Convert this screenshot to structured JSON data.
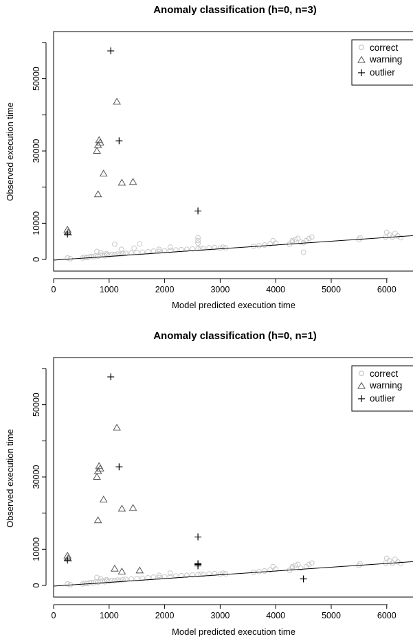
{
  "chart_data": [
    {
      "type": "scatter",
      "title": "Anomaly classification (h=0, n=3)",
      "xlabel": "Model predicted execution time",
      "ylabel": "Observed execution time",
      "xlim": [
        0,
        6500
      ],
      "ylim": [
        -3000,
        60000
      ],
      "xticks": [
        "0",
        "1000",
        "2000",
        "3000",
        "4000",
        "5000",
        "6000"
      ],
      "yticks": [
        "0",
        "10000",
        "30000",
        "50000"
      ],
      "legend": {
        "position": "top-right",
        "entries": [
          "correct",
          "warning",
          "outlier"
        ]
      },
      "regression_line": {
        "x": [
          0,
          6500
        ],
        "y": [
          -200,
          6600
        ]
      },
      "series": [
        {
          "name": "correct",
          "marker": "circle",
          "color": "#c8c8c8",
          "x": [
            250,
            300,
            520,
            560,
            600,
            640,
            680,
            720,
            760,
            800,
            840,
            880,
            920,
            960,
            1000,
            1050,
            1100,
            1150,
            1200,
            1250,
            1300,
            1400,
            1500,
            1600,
            1700,
            1800,
            1900,
            2000,
            2100,
            2200,
            2300,
            2400,
            2500,
            2600,
            2600,
            2600,
            2650,
            2700,
            2800,
            2900,
            3000,
            3050,
            3100,
            3600,
            3700,
            3800,
            3900,
            4000,
            4250,
            4300,
            4350,
            4400,
            4450,
            4500,
            4550,
            4600,
            4650,
            5500,
            5520,
            5980,
            6000,
            6050,
            6100,
            6150,
            6200,
            6250,
            1100,
            1550,
            1900,
            2100,
            2600,
            3950,
            4300,
            4500,
            850,
            780,
            1220,
            1450,
            950
          ],
          "y": [
            400,
            200,
            400,
            600,
            500,
            700,
            800,
            700,
            1000,
            900,
            1100,
            1200,
            1000,
            1300,
            1200,
            1400,
            1300,
            1500,
            1400,
            1600,
            1700,
            1800,
            1900,
            2000,
            2100,
            2300,
            2200,
            2400,
            2500,
            2600,
            2700,
            2800,
            2900,
            3000,
            4500,
            6000,
            3100,
            3000,
            3200,
            3300,
            3100,
            3400,
            3200,
            3600,
            3800,
            4000,
            4300,
            4500,
            4200,
            5200,
            5500,
            5800,
            4800,
            2000,
            5200,
            5800,
            6200,
            5500,
            6000,
            6200,
            7500,
            6800,
            6200,
            7200,
            6500,
            6000,
            4200,
            4300,
            2800,
            3400,
            5200,
            5200,
            4800,
            4600,
            1800,
            2200,
            2800,
            3100,
            1600
          ]
        },
        {
          "name": "warning",
          "marker": "triangle",
          "color": "#555555",
          "x": [
            250,
            260,
            780,
            800,
            820,
            840,
            800,
            900,
            1140,
            1230,
            1430
          ],
          "y": [
            8200,
            7400,
            30000,
            31600,
            33000,
            32300,
            18000,
            23700,
            43600,
            21200,
            21400
          ]
        },
        {
          "name": "outlier",
          "marker": "plus",
          "color": "#000000",
          "x": [
            250,
            1030,
            1180,
            2600
          ],
          "y": [
            7000,
            57700,
            32800,
            13400
          ]
        }
      ]
    },
    {
      "type": "scatter",
      "title": "Anomaly classification (h=0, n=1)",
      "xlabel": "Model predicted execution time",
      "ylabel": "Observed execution time",
      "xlim": [
        0,
        6500
      ],
      "ylim": [
        -3000,
        60000
      ],
      "xticks": [
        "0",
        "1000",
        "2000",
        "3000",
        "4000",
        "5000",
        "6000"
      ],
      "yticks": [
        "0",
        "10000",
        "30000",
        "50000"
      ],
      "legend": {
        "position": "top-right",
        "entries": [
          "correct",
          "warning",
          "outlier"
        ]
      },
      "regression_line": {
        "x": [
          0,
          6500
        ],
        "y": [
          -200,
          6600
        ]
      },
      "series": [
        {
          "name": "correct",
          "marker": "circle",
          "color": "#c8c8c8",
          "x": [
            250,
            300,
            520,
            560,
            600,
            640,
            680,
            720,
            760,
            800,
            840,
            880,
            920,
            960,
            1000,
            1050,
            1100,
            1150,
            1200,
            1250,
            1300,
            1400,
            1500,
            1600,
            1700,
            1800,
            1900,
            2000,
            2100,
            2200,
            2300,
            2400,
            2500,
            2600,
            2650,
            2700,
            2800,
            2900,
            3000,
            3050,
            3100,
            3600,
            3700,
            3800,
            3900,
            4000,
            4250,
            4300,
            4350,
            4400,
            4450,
            4550,
            4600,
            4650,
            5500,
            5520,
            5980,
            6000,
            6050,
            6100,
            6150,
            6200,
            6250,
            1900,
            2100,
            3950,
            4300,
            850,
            780,
            950
          ],
          "y": [
            400,
            200,
            400,
            600,
            500,
            700,
            800,
            700,
            1000,
            900,
            1100,
            1200,
            1000,
            1300,
            1200,
            1400,
            1300,
            1500,
            1400,
            1600,
            1700,
            1800,
            1900,
            2000,
            2100,
            2300,
            2200,
            2400,
            2500,
            2600,
            2700,
            2800,
            2900,
            3000,
            3100,
            3000,
            3200,
            3300,
            3100,
            3400,
            3200,
            3600,
            3800,
            4000,
            4300,
            4500,
            4200,
            5200,
            5500,
            5800,
            4800,
            5200,
            5800,
            6200,
            5500,
            6000,
            6200,
            7500,
            6800,
            6200,
            7200,
            6500,
            6000,
            2800,
            3400,
            5200,
            4800,
            1800,
            2200,
            1600
          ]
        },
        {
          "name": "warning",
          "marker": "triangle",
          "color": "#555555",
          "x": [
            250,
            260,
            780,
            800,
            820,
            840,
            800,
            900,
            1140,
            1230,
            1430,
            1100,
            1230,
            1550
          ],
          "y": [
            8200,
            7400,
            30000,
            31600,
            33000,
            32300,
            18000,
            23700,
            43600,
            21200,
            21400,
            4600,
            3800,
            4100
          ]
        },
        {
          "name": "outlier",
          "marker": "plus",
          "color": "#000000",
          "x": [
            250,
            1030,
            1180,
            2600,
            2600,
            2600,
            2600,
            4500
          ],
          "y": [
            7000,
            57700,
            32800,
            13400,
            6000,
            5400,
            5800,
            1800
          ]
        }
      ]
    }
  ]
}
